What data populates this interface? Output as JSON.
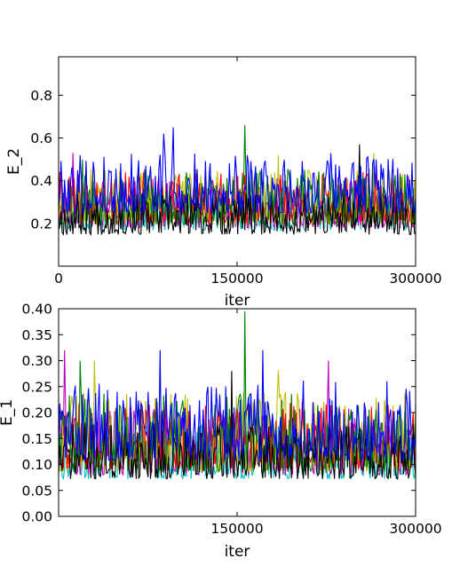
{
  "chart_data": [
    {
      "type": "line",
      "xlabel": "iter",
      "ylabel": "E_2",
      "xlim": [
        0,
        300000
      ],
      "ylim": [
        0.0,
        0.98
      ],
      "xticks": [
        0,
        150000,
        300000
      ],
      "xtick_labels": [
        "0",
        "150000",
        "300000"
      ],
      "yticks": [
        0.2,
        0.4,
        0.6,
        0.8
      ],
      "ytick_labels": [
        "0.2",
        "0.4",
        "0.6",
        "0.8"
      ],
      "grid": false,
      "legend": "none",
      "n_points": 300,
      "series": [
        {
          "color": "#00bfbf",
          "base": 0.2,
          "spread": 0.09,
          "min": 0.12,
          "seed": 11,
          "peaks": []
        },
        {
          "color": "#bf00bf",
          "base": 0.22,
          "spread": 0.11,
          "min": 0.12,
          "seed": 23,
          "peaks": [
            [
              12000,
              0.53
            ]
          ]
        },
        {
          "color": "#bfbf00",
          "base": 0.24,
          "spread": 0.12,
          "min": 0.12,
          "seed": 37,
          "peaks": [
            [
              185000,
              0.52
            ],
            [
              265000,
              0.53
            ]
          ]
        },
        {
          "color": "#ff0000",
          "base": 0.26,
          "spread": 0.11,
          "min": 0.11,
          "seed": 41,
          "peaks": []
        },
        {
          "color": "#008000",
          "base": 0.24,
          "spread": 0.12,
          "min": 0.12,
          "seed": 53,
          "peaks": [
            [
              157000,
              0.66
            ],
            [
              20000,
              0.5
            ]
          ]
        },
        {
          "color": "#000000",
          "base": 0.18,
          "spread": 0.09,
          "min": 0.1,
          "seed": 67,
          "peaks": [
            [
              253000,
              0.57
            ]
          ]
        },
        {
          "color": "#0000ff",
          "base": 0.31,
          "spread": 0.13,
          "min": 0.15,
          "seed": 79,
          "peaks": [
            [
              96000,
              0.65
            ],
            [
              88000,
              0.62
            ]
          ]
        }
      ]
    },
    {
      "type": "line",
      "xlabel": "iter",
      "ylabel": "E_1",
      "xlim": [
        0,
        300000
      ],
      "ylim": [
        0.0,
        0.4
      ],
      "xticks": [
        150000,
        300000
      ],
      "xtick_labels": [
        "150000",
        "300000"
      ],
      "yticks": [
        0.0,
        0.05,
        0.1,
        0.15,
        0.2,
        0.25,
        0.3,
        0.35,
        0.4
      ],
      "ytick_labels": [
        "0.00",
        "0.05",
        "0.10",
        "0.15",
        "0.20",
        "0.25",
        "0.30",
        "0.35",
        "0.40"
      ],
      "grid": false,
      "legend": "none",
      "n_points": 300,
      "series": [
        {
          "color": "#00bfbf",
          "base": 0.09,
          "spread": 0.05,
          "min": 0.045,
          "seed": 13,
          "peaks": []
        },
        {
          "color": "#bf00bf",
          "base": 0.1,
          "spread": 0.06,
          "min": 0.05,
          "seed": 29,
          "peaks": [
            [
              5000,
              0.32
            ],
            [
              227000,
              0.3
            ]
          ]
        },
        {
          "color": "#bfbf00",
          "base": 0.11,
          "spread": 0.07,
          "min": 0.05,
          "seed": 31,
          "peaks": [
            [
              30000,
              0.3
            ],
            [
              185000,
              0.28
            ]
          ]
        },
        {
          "color": "#ff0000",
          "base": 0.12,
          "spread": 0.06,
          "min": 0.05,
          "seed": 43,
          "peaks": []
        },
        {
          "color": "#008000",
          "base": 0.11,
          "spread": 0.07,
          "min": 0.05,
          "seed": 59,
          "peaks": [
            [
              157000,
              0.395
            ],
            [
              18000,
              0.3
            ]
          ]
        },
        {
          "color": "#000000",
          "base": 0.09,
          "spread": 0.05,
          "min": 0.045,
          "seed": 71,
          "peaks": [
            [
              145000,
              0.28
            ]
          ]
        },
        {
          "color": "#0000ff",
          "base": 0.14,
          "spread": 0.07,
          "min": 0.06,
          "seed": 83,
          "peaks": [
            [
              172000,
              0.32
            ],
            [
              85000,
              0.32
            ]
          ]
        }
      ]
    }
  ]
}
